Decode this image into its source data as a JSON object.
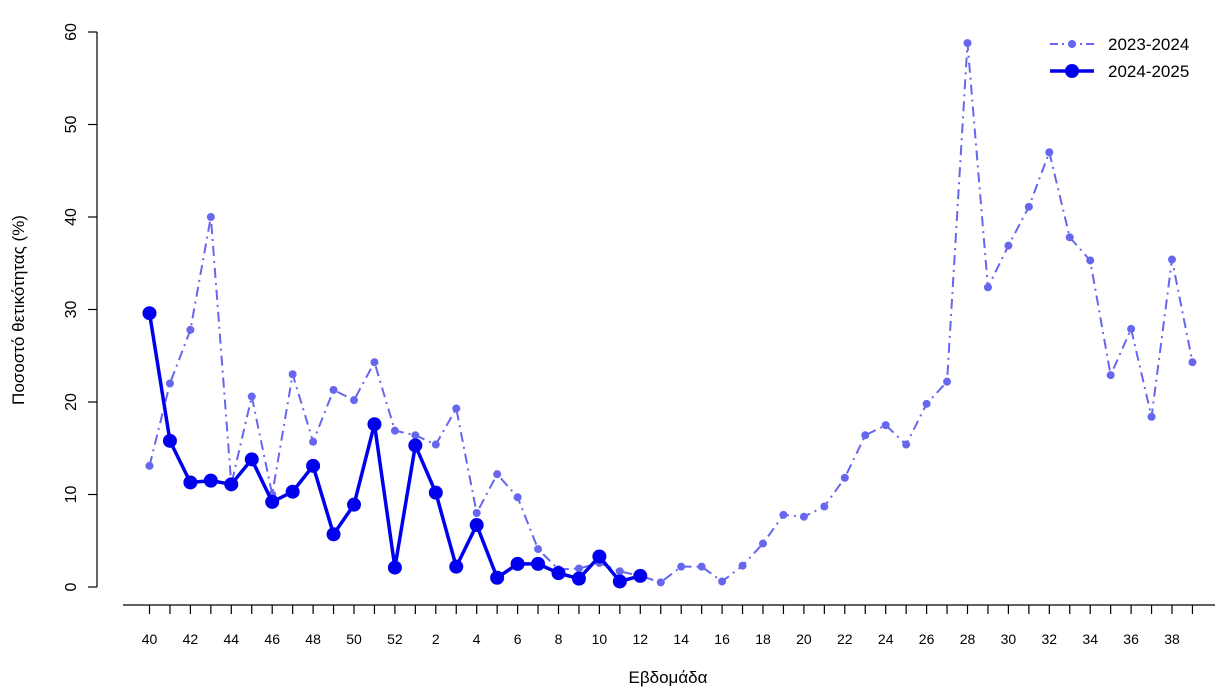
{
  "chart_data": {
    "type": "line",
    "xlabel": "Εβδομάδα",
    "ylabel": "Ποσοστό θετικότητας (%)",
    "ylim": [
      0,
      60
    ],
    "y_ticks": [
      0,
      10,
      20,
      30,
      40,
      50,
      60
    ],
    "x_weeks": [
      40,
      41,
      42,
      43,
      44,
      45,
      46,
      47,
      48,
      49,
      50,
      51,
      52,
      1,
      2,
      3,
      4,
      5,
      6,
      7,
      8,
      9,
      10,
      11,
      12,
      13,
      14,
      15,
      16,
      17,
      18,
      19,
      20,
      21,
      22,
      23,
      24,
      25,
      26,
      27,
      28,
      29,
      30,
      31,
      32,
      33,
      34,
      35,
      36,
      37,
      38,
      39
    ],
    "x_tick_labels": [
      "40",
      "42",
      "44",
      "46",
      "48",
      "50",
      "52",
      "2",
      "4",
      "6",
      "8",
      "10",
      "12",
      "14",
      "16",
      "18",
      "20",
      "22",
      "24",
      "26",
      "28",
      "30",
      "32",
      "34",
      "36",
      "38"
    ],
    "legend_position": "top-right",
    "grid": false,
    "series": [
      {
        "name": "2023-2024",
        "color": "#6666ee",
        "line_style": "dashdot",
        "marker": "small-circle",
        "values": [
          13.1,
          22.0,
          27.8,
          40.0,
          11.1,
          20.6,
          10.0,
          23.0,
          15.7,
          21.3,
          20.2,
          24.3,
          16.9,
          16.4,
          15.4,
          19.3,
          8.0,
          12.2,
          9.7,
          4.1,
          1.9,
          2.0,
          2.6,
          1.7,
          1.2,
          0.5,
          2.2,
          2.2,
          0.6,
          2.3,
          4.7,
          7.8,
          7.6,
          8.7,
          11.8,
          16.4,
          17.5,
          15.4,
          19.8,
          22.2,
          58.8,
          32.4,
          36.9,
          41.1,
          47.0,
          37.8,
          35.3,
          22.9,
          27.9,
          18.4,
          35.4,
          24.3
        ]
      },
      {
        "name": "2024-2025",
        "color": "#0000ee",
        "line_style": "solid",
        "marker": "large-circle",
        "values": [
          29.6,
          15.8,
          11.3,
          11.5,
          11.1,
          13.8,
          9.2,
          10.3,
          13.1,
          5.7,
          8.9,
          17.6,
          2.1,
          15.3,
          10.2,
          2.2,
          6.7,
          1.0,
          2.5,
          2.5,
          1.5,
          0.9,
          3.3,
          0.6,
          1.2
        ]
      }
    ]
  }
}
